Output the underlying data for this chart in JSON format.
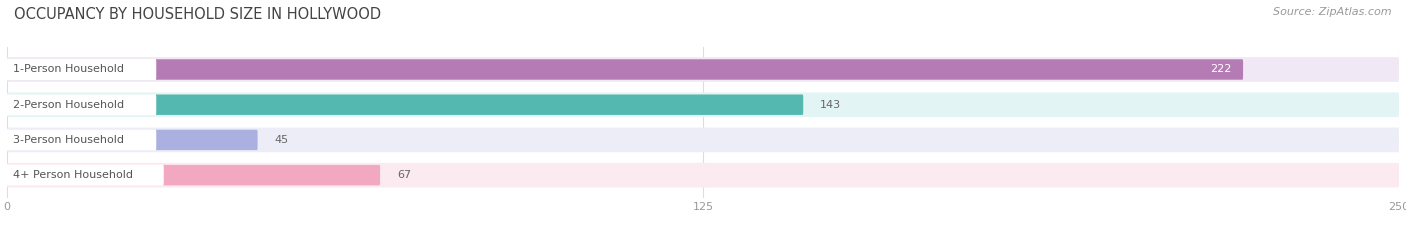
{
  "title": "OCCUPANCY BY HOUSEHOLD SIZE IN HOLLYWOOD",
  "source": "Source: ZipAtlas.com",
  "categories": [
    "1-Person Household",
    "2-Person Household",
    "3-Person Household",
    "4+ Person Household"
  ],
  "values": [
    222,
    143,
    45,
    67
  ],
  "bar_colors": [
    "#b57bb5",
    "#55b8b0",
    "#aab0e0",
    "#f2a8c0"
  ],
  "bg_colors": [
    "#f0e8f4",
    "#e2f4f3",
    "#ecedf7",
    "#fceaf1"
  ],
  "label_bg_colors": [
    "#f0e8f4",
    "#e2f4f3",
    "#ecedf7",
    "#fceaf1"
  ],
  "label_colors": [
    "#888888",
    "#888888",
    "#888888",
    "#888888"
  ],
  "xlim": [
    0,
    250
  ],
  "xticks": [
    0,
    125,
    250
  ],
  "title_fontsize": 10.5,
  "source_fontsize": 8,
  "label_fontsize": 8,
  "value_fontsize": 8,
  "bar_height": 0.58,
  "figure_width": 14.06,
  "figure_height": 2.33,
  "dpi": 100
}
